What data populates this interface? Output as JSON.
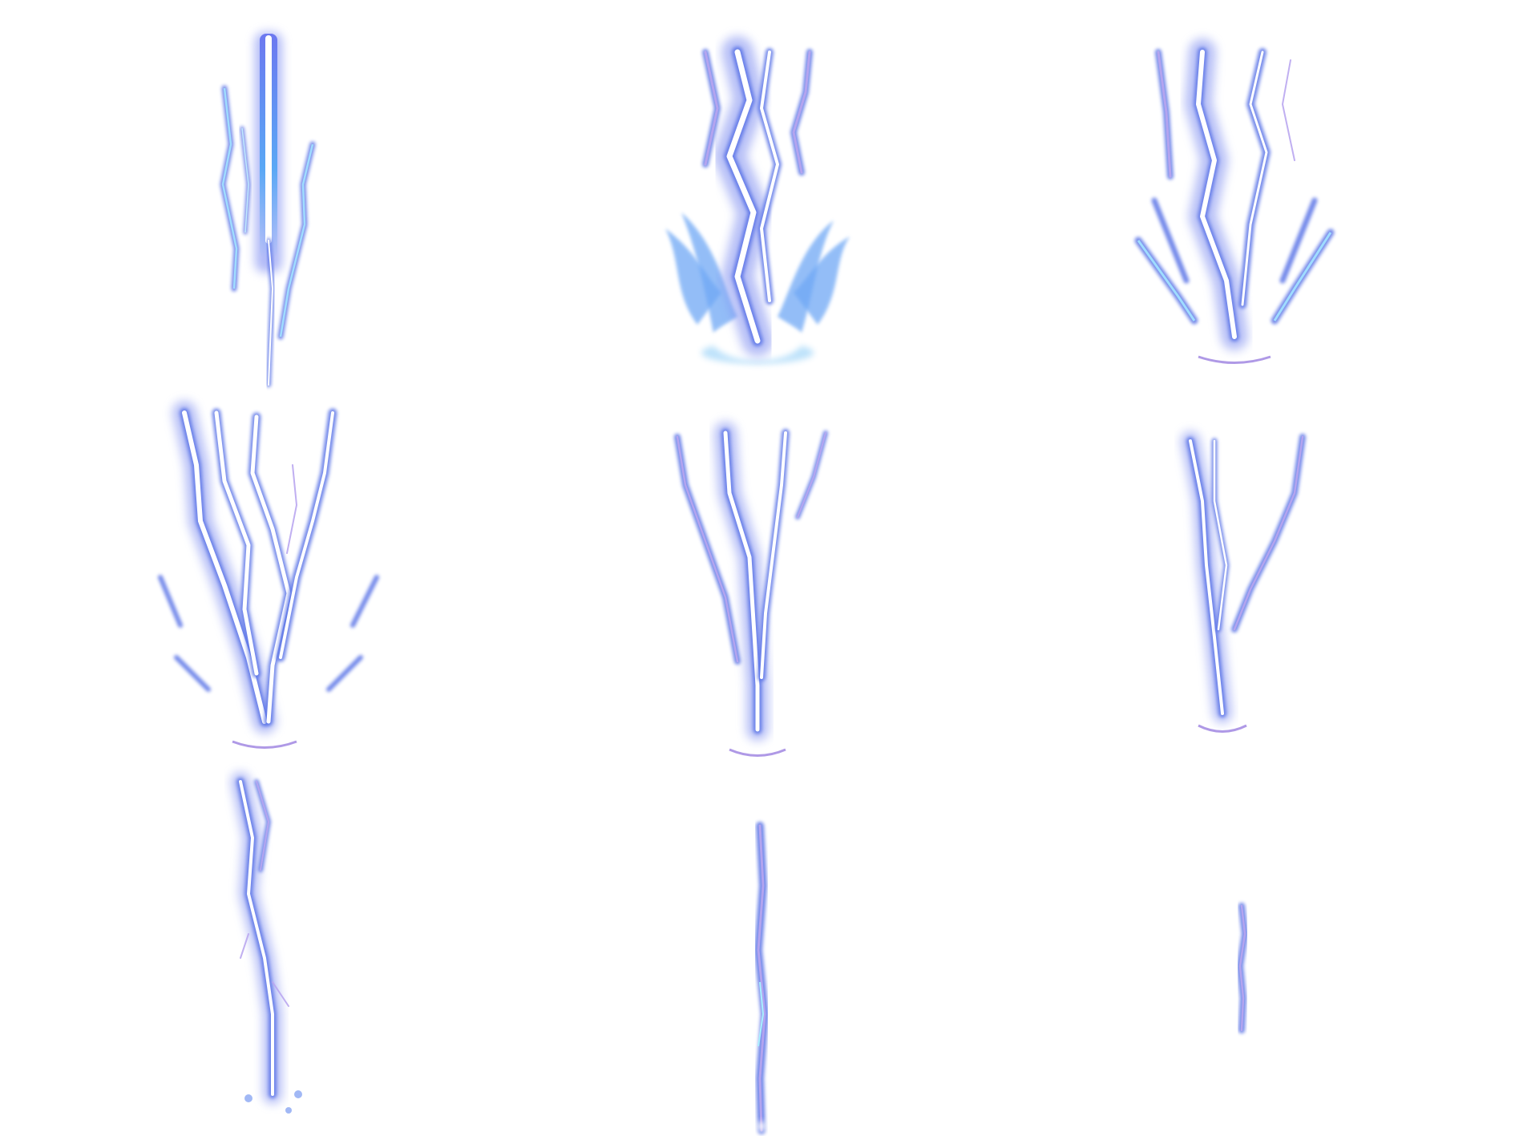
{
  "sprite_sheet": {
    "background": "#ffffff",
    "colors": {
      "glow": "#7d8cf0",
      "glow_deep": "#5a73e6",
      "core": "#ffffff",
      "edge": "#b9a6f0",
      "flame": "#6fa8f5",
      "rim": "#9b7fe0"
    },
    "grid": {
      "rows": 3,
      "columns": 3
    },
    "frames": [
      {
        "index": 1,
        "stage": "beam-strike"
      },
      {
        "index": 2,
        "stage": "impact-flare"
      },
      {
        "index": 3,
        "stage": "branching-impact"
      },
      {
        "index": 4,
        "stage": "full-fork"
      },
      {
        "index": 5,
        "stage": "fork-decay"
      },
      {
        "index": 6,
        "stage": "fork-thinning"
      },
      {
        "index": 7,
        "stage": "single-bolt"
      },
      {
        "index": 8,
        "stage": "thin-trail"
      },
      {
        "index": 9,
        "stage": "fading-spark"
      }
    ]
  }
}
